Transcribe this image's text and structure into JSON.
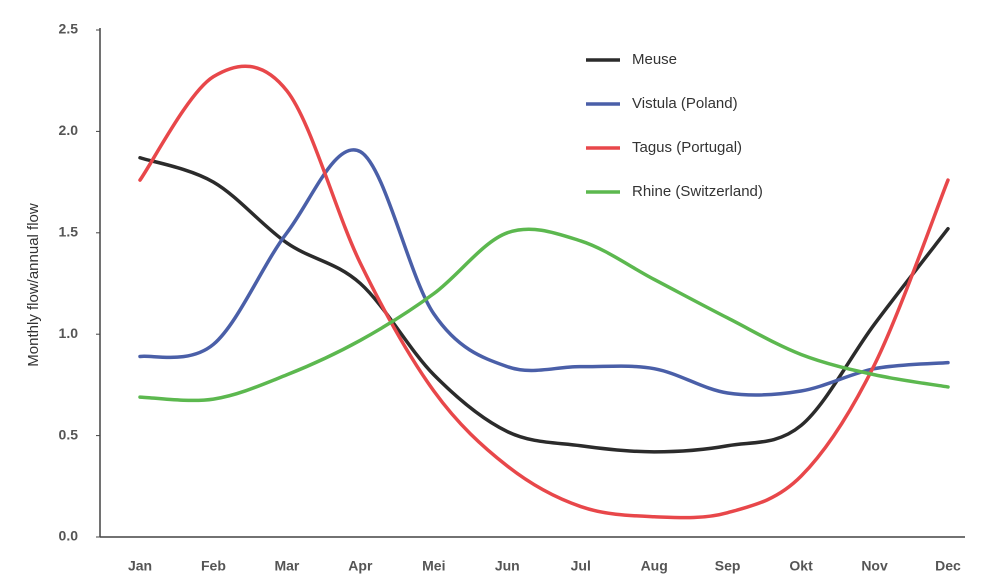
{
  "chart_data": {
    "type": "line",
    "y_label": "Monthly flow/annual flow",
    "categories": [
      "Jan",
      "Feb",
      "Mar",
      "Apr",
      "Mei",
      "Jun",
      "Jul",
      "Aug",
      "Sep",
      "Okt",
      "Nov",
      "Dec"
    ],
    "series": [
      {
        "name": "Meuse",
        "color": "#2b2b2b",
        "values": [
          1.87,
          1.75,
          1.45,
          1.25,
          0.8,
          0.52,
          0.45,
          0.42,
          0.45,
          0.55,
          1.05,
          1.52
        ]
      },
      {
        "name": "Vistula (Poland)",
        "color": "#4a5fa8",
        "values": [
          0.89,
          0.95,
          1.5,
          1.9,
          1.1,
          0.84,
          0.84,
          0.83,
          0.71,
          0.72,
          0.83,
          0.86
        ]
      },
      {
        "name": "Tagus (Portugal)",
        "color": "#e8474a",
        "values": [
          1.76,
          2.27,
          2.2,
          1.35,
          0.72,
          0.35,
          0.15,
          0.1,
          0.12,
          0.3,
          0.85,
          1.76
        ]
      },
      {
        "name": "Rhine (Switzerland)",
        "color": "#5cb84f",
        "values": [
          0.69,
          0.68,
          0.8,
          0.97,
          1.2,
          1.5,
          1.46,
          1.27,
          1.08,
          0.9,
          0.8,
          0.74
        ]
      }
    ],
    "ylim": [
      0,
      2.5
    ],
    "yticks": [
      {
        "value": 0,
        "label": "0.0"
      },
      0.5,
      {
        "value": 1,
        "label": "1.0"
      },
      1.5,
      {
        "value": 2,
        "label": "2.0"
      },
      2.5
    ],
    "legend": "top-right"
  }
}
